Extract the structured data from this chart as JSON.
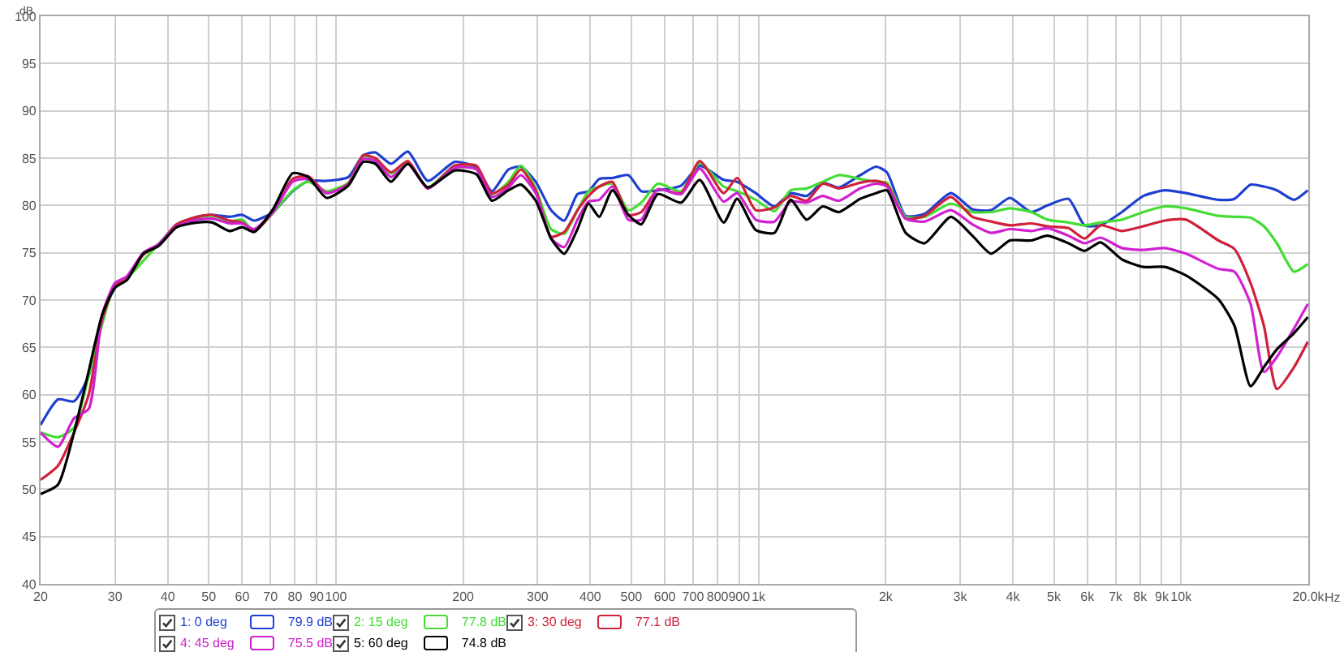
{
  "chart_data": {
    "type": "line",
    "ylabel": "dB",
    "legend": "bottom",
    "grid": true,
    "log": "x",
    "line_style": "solid",
    "marker": "none",
    "x": [
      20,
      22,
      24,
      26,
      28,
      30,
      32,
      35,
      38,
      42,
      47,
      51,
      56,
      60,
      64,
      71,
      79,
      86,
      95,
      107,
      116,
      124,
      135,
      148,
      165,
      191,
      215,
      234,
      256,
      274,
      297,
      323,
      347,
      373,
      396,
      420,
      451,
      492,
      528,
      578,
      656,
      726,
      827,
      890,
      985,
      1091,
      1191,
      1300,
      1419,
      1549,
      1740,
      1898,
      2013,
      2230,
      2470,
      2853,
      3207,
      3551,
      3934,
      4420,
      4826,
      5416,
      5910,
      6450,
      7242,
      8140,
      9150,
      10270,
      12250,
      13370,
      14600,
      15700,
      16860,
      18500,
      19950
    ],
    "series": [
      {
        "name": "1: 0 deg",
        "color": "#1f3fd0",
        "values": [
          56.8,
          59.5,
          59.3,
          62,
          68.3,
          71.3,
          72.3,
          74.9,
          75.9,
          78,
          78.8,
          79,
          78.8,
          79,
          78.4,
          79.3,
          81.5,
          82.6,
          82.6,
          83,
          85.3,
          85.6,
          84.4,
          85.7,
          82.6,
          84.6,
          84,
          81.5,
          83.8,
          84.1,
          82.5,
          79.5,
          78.4,
          81.2,
          81.5,
          82.8,
          82.9,
          83.2,
          81.5,
          81.6,
          82.1,
          84.2,
          82.7,
          82.5,
          81.3,
          79.9,
          81.3,
          81,
          82.4,
          81.9,
          83.2,
          84.1,
          83.5,
          78.9,
          79.1,
          81.3,
          79.6,
          79.5,
          80.8,
          79.3,
          80,
          80.7,
          77.9,
          77.9,
          79.3,
          81,
          81.6,
          81.3,
          80.6,
          80.7,
          82.2,
          82,
          81.6,
          80.6,
          81.6
        ]
      },
      {
        "name": "2: 15 deg",
        "color": "#44dd33",
        "values": [
          56,
          55.5,
          56.5,
          62,
          null,
          71.6,
          72.3,
          null,
          75.9,
          77.9,
          78.7,
          78.9,
          78.3,
          78.5,
          77.3,
          79.2,
          81.6,
          82.5,
          81.5,
          82.4,
          85.2,
          84.9,
          83.4,
          84.5,
          81.9,
          84.2,
          83.8,
          81.2,
          82.5,
          84.2,
          81.8,
          77.5,
          77,
          79.5,
          81.5,
          82,
          82.3,
          79.5,
          80.3,
          82.3,
          81.5,
          84.5,
          82,
          81.5,
          80.6,
          79.4,
          81.6,
          81.8,
          82.5,
          83.2,
          82.8,
          82.5,
          82.4,
          78.8,
          78.8,
          80.2,
          79.3,
          79.3,
          79.7,
          79.3,
          78.5,
          78.2,
          77.9,
          78.2,
          78.5,
          79.3,
          79.9,
          79.7,
          78.9,
          78.8,
          78.7,
          77.8,
          76,
          73,
          73.8
        ]
      },
      {
        "name": "3: 30 deg",
        "color": "#d0203a",
        "values": [
          51,
          52.5,
          56,
          60,
          68,
          71.5,
          72.2,
          74.8,
          75.8,
          78,
          78.8,
          79,
          78.4,
          78.2,
          77.3,
          79.3,
          82.8,
          83.1,
          81.3,
          82.3,
          85.3,
          85,
          83.5,
          84.7,
          81.8,
          84.2,
          84.2,
          81.3,
          82.2,
          83.8,
          81.6,
          76.7,
          77.2,
          79.5,
          81,
          82,
          82.5,
          79,
          79.3,
          81.7,
          81.3,
          84.7,
          81.3,
          82.9,
          79.5,
          79.8,
          81,
          80.5,
          82.3,
          81.8,
          82.4,
          82.6,
          82.2,
          78.6,
          78.9,
          80.9,
          78.8,
          78.3,
          77.9,
          78.1,
          77.8,
          77.6,
          76.5,
          77.9,
          77.3,
          77.8,
          78.4,
          78.5,
          76.3,
          75.4,
          71.8,
          67.3,
          60.6,
          62.9,
          65.6
        ]
      },
      {
        "name": "4: 45 deg",
        "color": "#d020d0",
        "values": [
          56,
          54.5,
          57.5,
          58.5,
          68.5,
          71.8,
          72.5,
          75,
          75.9,
          77.8,
          78.5,
          78.6,
          78.1,
          78.1,
          77.5,
          79.3,
          82.5,
          82.8,
          81.3,
          82.2,
          84.9,
          84.7,
          83,
          84.4,
          81.8,
          84,
          83.8,
          80.9,
          81.9,
          83.2,
          81.3,
          76.5,
          75.6,
          78.5,
          80.4,
          80.6,
          82,
          78.5,
          78.5,
          81.7,
          81.2,
          83.9,
          80.4,
          81.3,
          78.5,
          78.3,
          80.4,
          80.3,
          81,
          80.5,
          81.8,
          82.3,
          82,
          78.6,
          78.3,
          79.5,
          78,
          77.1,
          77.5,
          77.3,
          77.6,
          76.8,
          76,
          76.6,
          75.5,
          75.3,
          75.5,
          74.9,
          73.3,
          73,
          69.6,
          62.4,
          64,
          67,
          69.6
        ]
      },
      {
        "name": "5: 60 deg",
        "color": "#000000",
        "values": [
          49.5,
          50.5,
          56,
          62.5,
          68.5,
          71.3,
          72.1,
          74.9,
          75.7,
          77.7,
          78.2,
          78.2,
          77.3,
          77.7,
          77.2,
          79.6,
          83.4,
          83,
          80.8,
          82.1,
          84.6,
          84.4,
          82.5,
          84.4,
          81.9,
          83.7,
          83.3,
          80.5,
          81.6,
          82.2,
          80.5,
          76.5,
          74.9,
          77.5,
          80.2,
          78.8,
          81.6,
          79,
          78,
          81.2,
          80.3,
          82.7,
          78.2,
          80.7,
          77.4,
          77.1,
          80.6,
          78.5,
          79.9,
          79.3,
          80.7,
          81.3,
          81.6,
          77.1,
          76,
          78.8,
          76.8,
          74.9,
          76.3,
          76.3,
          76.8,
          76,
          75.2,
          76.1,
          74.3,
          73.5,
          73.5,
          72.6,
          70.1,
          67.3,
          60.9,
          62.9,
          64.8,
          66.5,
          68.2
        ]
      }
    ],
    "annotations": [
      "79.9 dB",
      "77.8 dB",
      "77.1 dB",
      "75.5 dB",
      "74.8 dB"
    ],
    "xlim": [
      20,
      20000
    ],
    "ylim": [
      40,
      100
    ],
    "xticks": [
      20,
      30,
      40,
      50,
      60,
      70,
      80,
      90,
      100,
      200,
      300,
      400,
      500,
      600,
      700,
      800,
      900,
      {
        "value": 1000,
        "label": "1k"
      },
      {
        "value": 2000,
        "label": "2k"
      },
      {
        "value": 3000,
        "label": "3k"
      },
      {
        "value": 4000,
        "label": "4k"
      },
      {
        "value": 5000,
        "label": "5k"
      },
      {
        "value": 6000,
        "label": "6k"
      },
      {
        "value": 7000,
        "label": "7k"
      },
      {
        "value": 8000,
        "label": "8k"
      },
      {
        "value": 9000,
        "label": "9k"
      },
      {
        "value": 10000,
        "label": "10k"
      },
      {
        "value": 20000,
        "label": "20.0k"
      }
    ],
    "xlabel": "Hz",
    "yticks": [
      40,
      45,
      50,
      55,
      60,
      65,
      70,
      75,
      80,
      85,
      90,
      95,
      100
    ]
  }
}
